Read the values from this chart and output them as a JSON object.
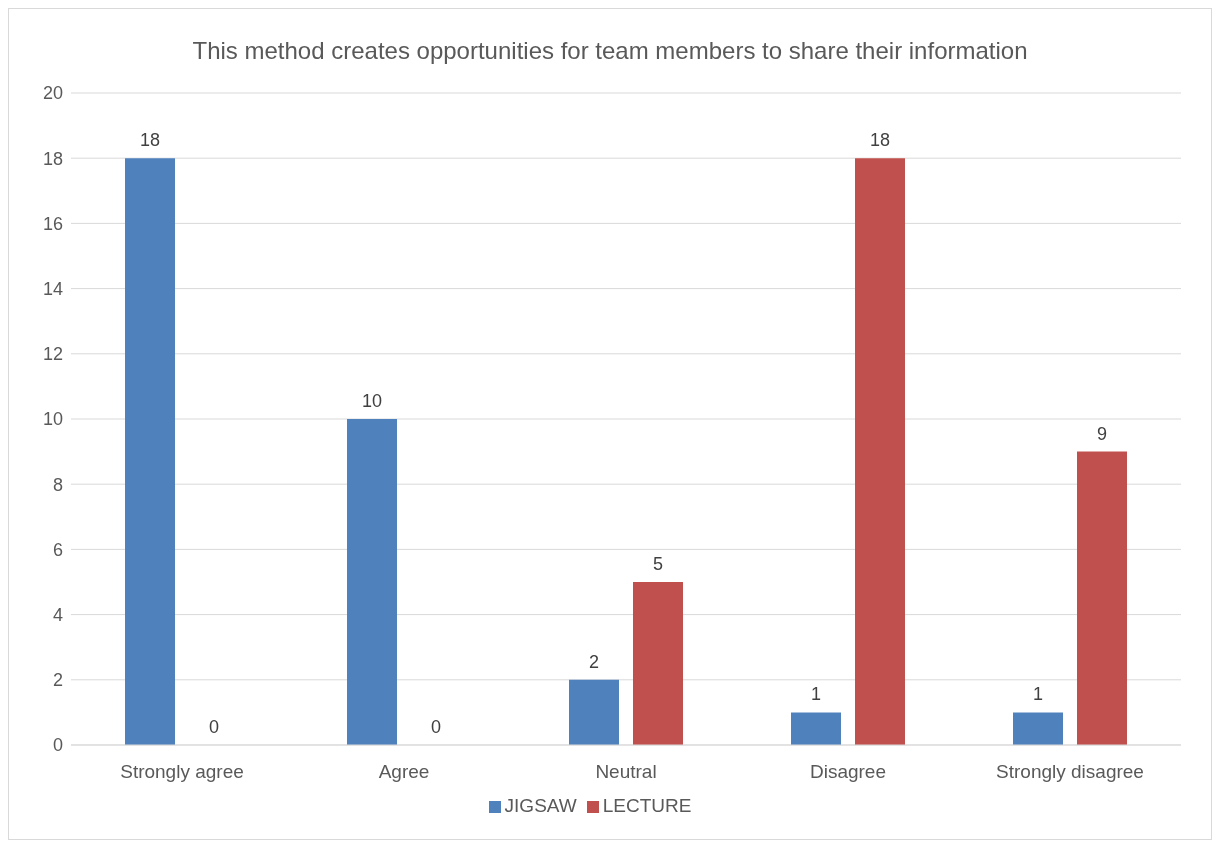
{
  "chart_data": {
    "type": "bar",
    "title": "This method creates opportunities for team members to share their information",
    "categories": [
      "Strongly agree",
      "Agree",
      "Neutral",
      "Disagree",
      "Strongly disagree"
    ],
    "series": [
      {
        "name": "JIGSAW",
        "color": "#4f81bd",
        "values": [
          18,
          10,
          2,
          1,
          1
        ]
      },
      {
        "name": "LECTURE",
        "color": "#c0504d",
        "values": [
          0,
          0,
          5,
          18,
          9
        ]
      }
    ],
    "ylim": [
      0,
      20
    ],
    "yticks": [
      0,
      2,
      4,
      6,
      8,
      10,
      12,
      14,
      16,
      18,
      20
    ],
    "grid": "y",
    "legend": "bottom",
    "data_labels": true
  }
}
